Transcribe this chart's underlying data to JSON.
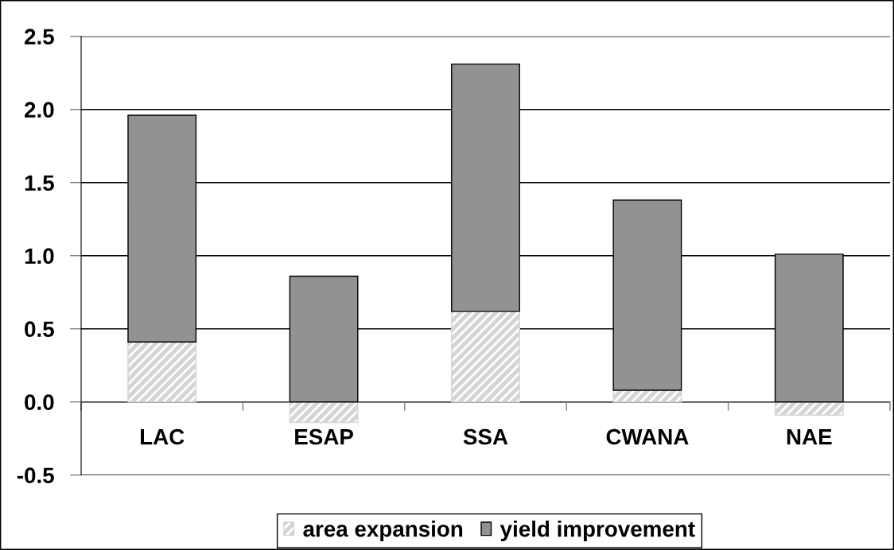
{
  "chart_data": {
    "type": "bar",
    "stacked": true,
    "categories": [
      "LAC",
      "ESAP",
      "SSA",
      "CWANA",
      "NAE"
    ],
    "series": [
      {
        "name": "area expansion",
        "color": "#d4d4d4",
        "values": [
          0.41,
          -0.14,
          0.62,
          0.08,
          -0.09
        ]
      },
      {
        "name": "yield improvement",
        "color": "#929292",
        "values": [
          1.55,
          0.86,
          1.69,
          1.3,
          1.01
        ]
      }
    ],
    "ylim": [
      -0.5,
      2.5
    ],
    "yticks": [
      -0.5,
      {
        "value": 0,
        "label": "0.0"
      },
      0.5,
      {
        "value": 1,
        "label": "1.0"
      },
      1.5,
      {
        "value": 2,
        "label": "2.0"
      },
      2.5
    ],
    "grid": "y",
    "legend": "bottom"
  }
}
